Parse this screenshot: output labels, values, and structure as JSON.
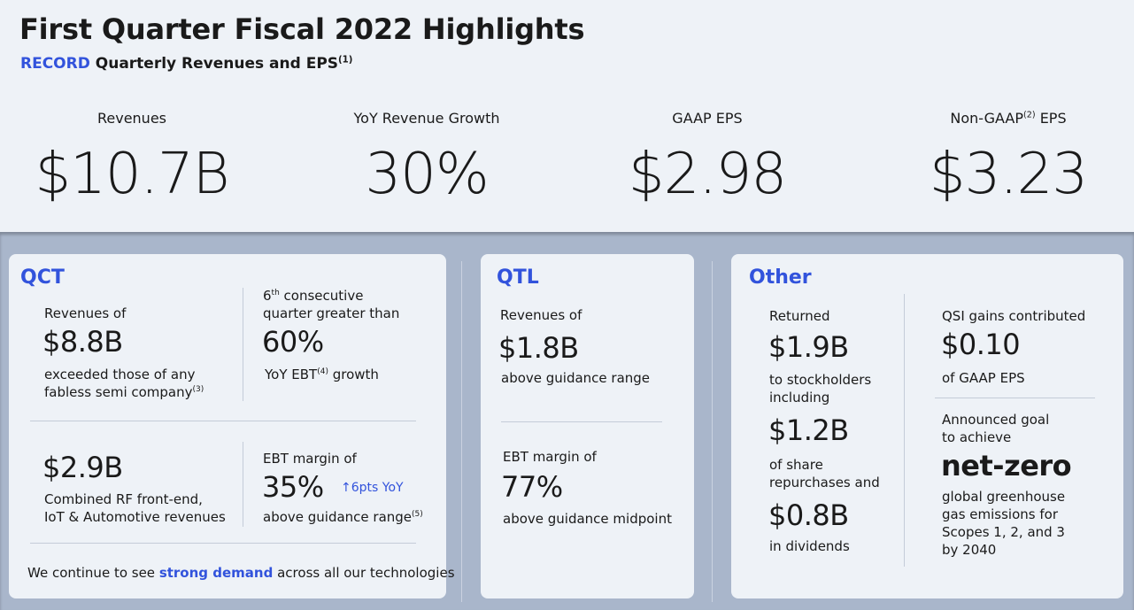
{
  "header": {
    "title": "First Quarter Fiscal 2022 Highlights",
    "subtitle_accent": "RECORD",
    "subtitle_rest": "Quarterly Revenues and EPS",
    "subtitle_note": "(1)"
  },
  "kpis": [
    {
      "label": "Revenues",
      "value": "$10.7B"
    },
    {
      "label": "YoY Revenue Growth",
      "value": "30%"
    },
    {
      "label": "GAAP EPS",
      "value": "$2.98"
    },
    {
      "label_pre": "Non-GAAP",
      "label_note": "(2)",
      "label_post": " EPS",
      "value": "$3.23"
    }
  ],
  "qct": {
    "title": "QCT",
    "rev_label": "Revenues of",
    "rev_value": "$8.8B",
    "rev_desc1": "exceeded those of any",
    "rev_desc2": "fabless semi company",
    "rev_note": "(3)",
    "consec_num": "6",
    "consec_sup": "th",
    "consec_line1": " consecutive",
    "consec_line2": "quarter greater than",
    "consec_value": "60%",
    "consec_desc_pre": "YoY EBT",
    "consec_desc_note": "(4)",
    "consec_desc_post": " growth",
    "rf_value": "$2.9B",
    "rf_desc1": "Combined RF front-end,",
    "rf_desc2": "IoT & Automotive revenues",
    "margin_label": "EBT margin of",
    "margin_value": "35%",
    "margin_change": "↑6pts YoY",
    "margin_desc": "above guidance range",
    "margin_note": "(5)",
    "footer_pre": "We continue to see ",
    "footer_accent": "strong demand",
    "footer_post": " across all our technologies"
  },
  "qtl": {
    "title": "QTL",
    "rev_label": "Revenues of",
    "rev_value": "$1.8B",
    "rev_desc": "above guidance range",
    "margin_label": "EBT margin of",
    "margin_value": "77%",
    "margin_desc": "above guidance midpoint"
  },
  "other": {
    "title": "Other",
    "returned_label": "Returned",
    "returned_value": "$1.9B",
    "returned_desc1": "to stockholders",
    "returned_desc2": "including",
    "repurchase_value": "$1.2B",
    "repurchase_desc1": "of share",
    "repurchase_desc2": "repurchases and",
    "dividends_value": "$0.8B",
    "dividends_desc": "in dividends",
    "qsi_label": "QSI gains contributed",
    "qsi_value": "$0.10",
    "qsi_desc": "of GAAP EPS",
    "goal_line1": "Announced goal",
    "goal_line2": "to achieve",
    "goal_value": "net-zero",
    "goal_desc1": "global greenhouse",
    "goal_desc2": "gas emissions for",
    "goal_desc3": "Scopes 1, 2, and 3",
    "goal_desc4": "by 2040"
  }
}
